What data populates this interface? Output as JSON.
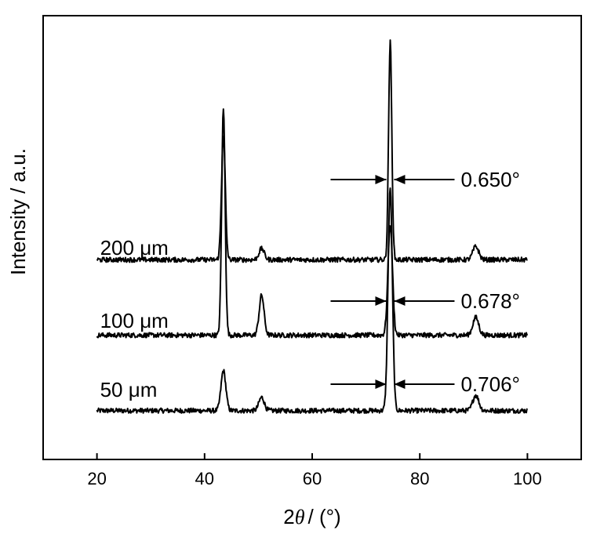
{
  "chart_data": {
    "type": "line",
    "xlabel_prefix": "2",
    "xlabel_symbol": "θ",
    "xlabel_suffix": "/ (°)",
    "ylabel": "Intensity / a.u.",
    "xlim": [
      10,
      110
    ],
    "ylim": [
      0,
      100
    ],
    "x_ticks": [
      "20",
      "40",
      "60",
      "80",
      "100"
    ],
    "x_tick_values": [
      20,
      40,
      60,
      80,
      100
    ],
    "grid": false,
    "line_color": "#000000",
    "series": [
      {
        "name": "50 μm",
        "offset": 11,
        "peaks": [
          [
            43.5,
            9,
            0.45
          ],
          [
            50.6,
            3,
            0.5
          ],
          [
            74.5,
            50,
            0.4
          ],
          [
            90.4,
            3.5,
            0.55
          ]
        ],
        "fwhm_label": "0.706°",
        "fwhm_x": 74.5
      },
      {
        "name": "100 μm",
        "offset": 28,
        "peaks": [
          [
            43.5,
            51,
            0.32
          ],
          [
            50.6,
            9,
            0.45
          ],
          [
            74.5,
            25,
            0.42
          ],
          [
            90.4,
            4,
            0.55
          ]
        ],
        "fwhm_label": "0.678°",
        "fwhm_x": 74.5
      },
      {
        "name": "200 μm",
        "offset": 45,
        "peaks": [
          [
            43.5,
            28,
            0.35
          ],
          [
            50.6,
            2.5,
            0.5
          ],
          [
            74.5,
            49,
            0.3
          ],
          [
            90.4,
            3,
            0.55
          ]
        ],
        "fwhm_label": "0.650°",
        "fwhm_x": 74.5
      }
    ]
  }
}
